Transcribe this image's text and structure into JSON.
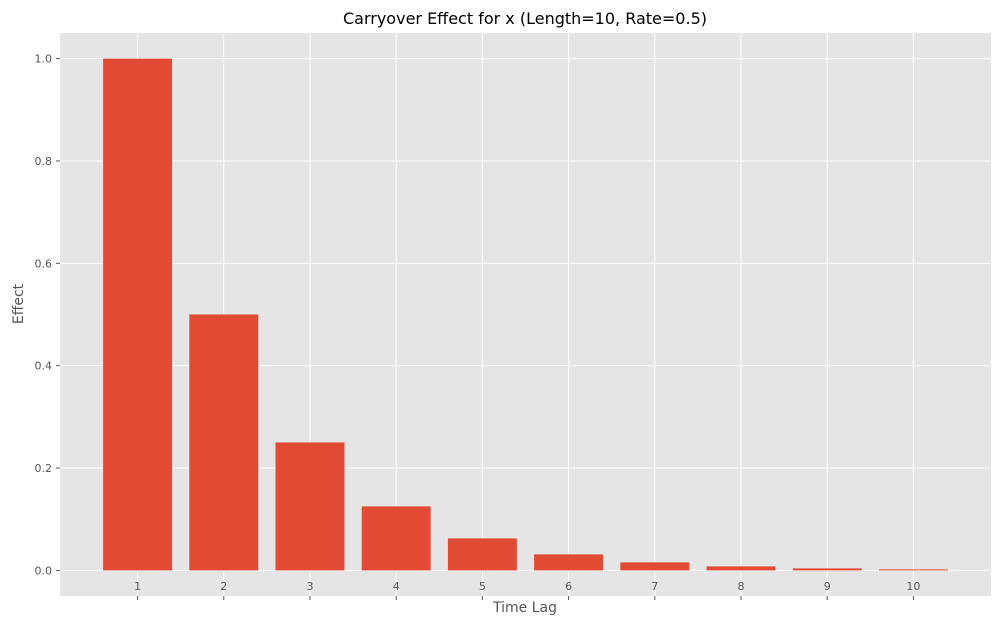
{
  "chart_data": {
    "type": "bar",
    "title": "Carryover Effect for x (Length=10, Rate=0.5)",
    "xlabel": "Time Lag",
    "ylabel": "Effect",
    "categories": [
      "1",
      "2",
      "3",
      "4",
      "5",
      "6",
      "7",
      "8",
      "9",
      "10"
    ],
    "values": [
      1.0,
      0.5,
      0.25,
      0.125,
      0.0625,
      0.03125,
      0.015625,
      0.0078125,
      0.00390625,
      0.001953125
    ],
    "yticks": [
      "0.0",
      "0.2",
      "0.4",
      "0.6",
      "0.8",
      "1.0"
    ],
    "ylim": [
      -0.05,
      1.05
    ],
    "xlim": [
      0.1,
      10.9
    ],
    "grid": true,
    "colors": {
      "bar": "#E24A33",
      "background": "#E5E5E5",
      "grid": "#FFFFFF",
      "text": "#555555"
    }
  }
}
